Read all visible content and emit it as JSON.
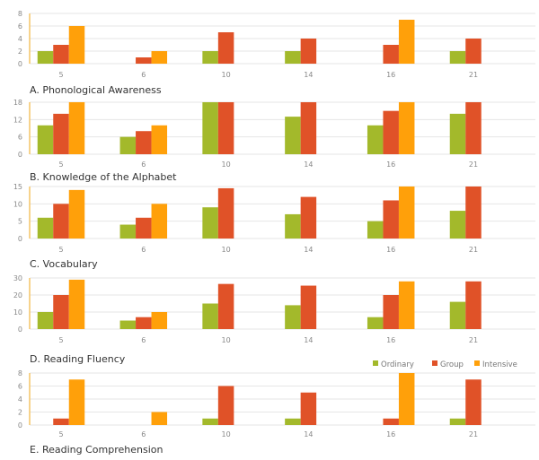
{
  "chart_data": [
    {
      "type": "bar",
      "title": "A.  Phonological Awareness",
      "categories": [
        "5",
        "6",
        "10",
        "14",
        "16",
        "21"
      ],
      "ylim": [
        0,
        8
      ],
      "yticks": [
        0,
        2,
        4,
        6,
        8
      ],
      "grid": true,
      "series": [
        {
          "name": "Ordinary",
          "values": [
            2,
            0,
            2,
            2,
            0,
            2
          ]
        },
        {
          "name": "Group",
          "values": [
            3,
            1,
            5,
            4,
            3,
            4
          ]
        },
        {
          "name": "Intensive",
          "values": [
            6,
            2,
            0,
            0,
            7,
            0
          ]
        }
      ]
    },
    {
      "type": "bar",
      "title": "B. Knowledge of the Alphabet",
      "categories": [
        "5",
        "6",
        "10",
        "14",
        "16",
        "21"
      ],
      "ylim": [
        0,
        18
      ],
      "yticks": [
        0,
        6,
        12,
        18
      ],
      "grid": true,
      "series": [
        {
          "name": "Ordinary",
          "values": [
            10,
            6,
            18,
            13,
            10,
            14
          ]
        },
        {
          "name": "Group",
          "values": [
            14,
            8,
            18,
            18,
            15,
            18
          ]
        },
        {
          "name": "Intensive",
          "values": [
            18,
            10,
            0,
            0,
            18,
            0
          ]
        }
      ]
    },
    {
      "type": "bar",
      "title": "C. Vocabulary",
      "categories": [
        "5",
        "6",
        "10",
        "14",
        "16",
        "21"
      ],
      "ylim": [
        0,
        15
      ],
      "yticks": [
        0,
        5,
        10,
        15
      ],
      "grid": true,
      "series": [
        {
          "name": "Ordinary",
          "values": [
            6,
            4,
            9,
            7,
            5,
            8
          ]
        },
        {
          "name": "Group",
          "values": [
            10,
            6,
            14.5,
            12,
            11,
            15
          ]
        },
        {
          "name": "Intensive",
          "values": [
            14,
            10,
            0,
            0,
            15,
            0
          ]
        }
      ]
    },
    {
      "type": "bar",
      "title": "D. Reading Fluency",
      "categories": [
        "5",
        "6",
        "10",
        "14",
        "16",
        "21"
      ],
      "ylim": [
        0,
        30
      ],
      "yticks": [
        0,
        10,
        20,
        30
      ],
      "grid": true,
      "series": [
        {
          "name": "Ordinary",
          "values": [
            10,
            5,
            15,
            14,
            7,
            16
          ]
        },
        {
          "name": "Group",
          "values": [
            20,
            7,
            26.5,
            25.5,
            20,
            28
          ]
        },
        {
          "name": "Intensive",
          "values": [
            29,
            10,
            0,
            0,
            28,
            0
          ]
        }
      ]
    },
    {
      "type": "bar",
      "title": "E. Reading Comprehension",
      "categories": [
        "5",
        "6",
        "10",
        "14",
        "16",
        "21"
      ],
      "ylim": [
        0,
        8
      ],
      "yticks": [
        0,
        2,
        4,
        6,
        8
      ],
      "grid": true,
      "legend_position": "top-right",
      "series": [
        {
          "name": "Ordinary",
          "values": [
            0,
            0,
            1,
            1,
            0,
            1
          ]
        },
        {
          "name": "Group",
          "values": [
            1,
            0,
            6,
            5,
            1,
            7
          ]
        },
        {
          "name": "Intensive",
          "values": [
            7,
            2,
            0,
            0,
            8,
            0
          ]
        }
      ]
    }
  ],
  "legend": {
    "items": [
      {
        "label": "Ordinary",
        "color": "#a3b92b"
      },
      {
        "label": "Group",
        "color": "#e05228"
      },
      {
        "label": "Intensive",
        "color": "#ffa00a"
      }
    ]
  },
  "colors": {
    "axis": "#f4c466",
    "grid": "#e6e6e6"
  }
}
